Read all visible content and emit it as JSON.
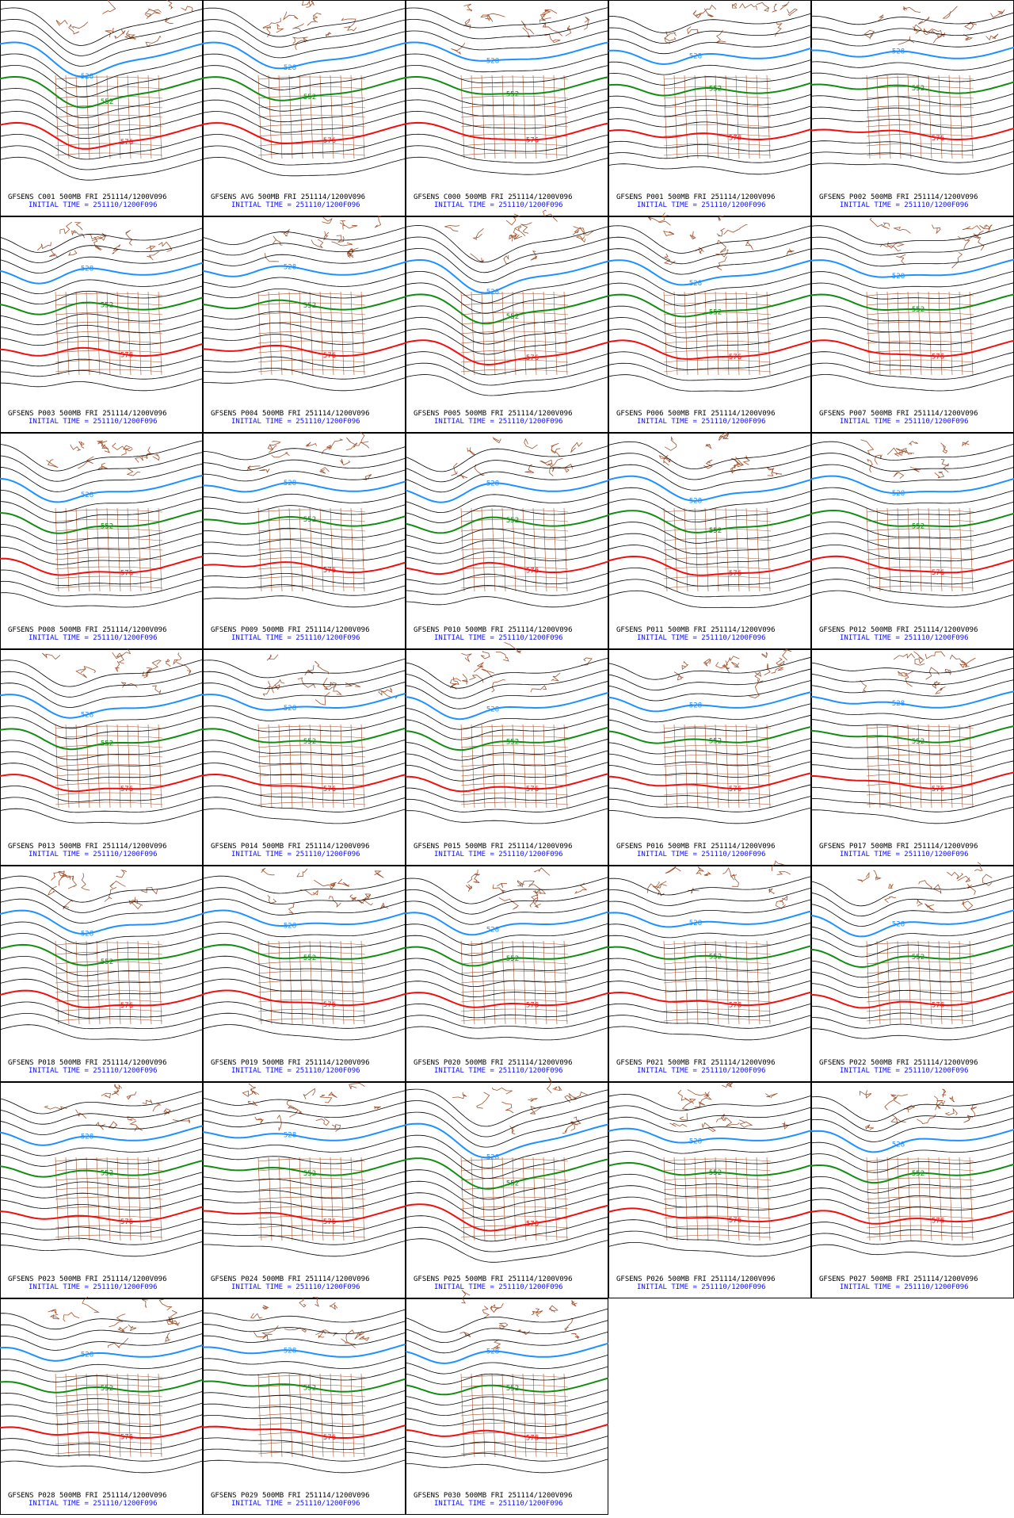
{
  "panels": [
    {
      "line1": "GFSENS C001 500MB FRI 251114/1200V096",
      "line2": "INITIAL TIME = 251110/1200F096"
    },
    {
      "line1": "GFSENS AVG 500MB FRI 251114/1200V096",
      "line2": "INITIAL TIME = 251110/1200F096"
    },
    {
      "line1": "GFSENS C000 500MB FRI 251114/1200V096",
      "line2": "INITIAL TIME = 251110/1200F096"
    },
    {
      "line1": "GFSENS P001 500MB FRI 251114/1200V096",
      "line2": "INITIAL TIME = 251110/1200F096"
    },
    {
      "line1": "GFSENS P002 500MB FRI 251114/1200V096",
      "line2": "INITIAL TIME = 251110/1200F096"
    },
    {
      "line1": "GFSENS P003 500MB FRI 251114/1200V096",
      "line2": "INITIAL TIME = 251110/1200F096"
    },
    {
      "line1": "GFSENS P004 500MB FRI 251114/1200V096",
      "line2": "INITIAL TIME = 251110/1200F096"
    },
    {
      "line1": "GFSENS P005 500MB FRI 251114/1200V096",
      "line2": "INITIAL TIME = 251110/1200F096"
    },
    {
      "line1": "GFSENS P006 500MB FRI 251114/1200V096",
      "line2": "INITIAL TIME = 251110/1200F096"
    },
    {
      "line1": "GFSENS P007 500MB FRI 251114/1200V096",
      "line2": "INITIAL TIME = 251110/1200F096"
    },
    {
      "line1": "GFSENS P008 500MB FRI 251114/1200V096",
      "line2": "INITIAL TIME = 251110/1200F096"
    },
    {
      "line1": "GFSENS P009 500MB FRI 251114/1200V096",
      "line2": "INITIAL TIME = 251110/1200F096"
    },
    {
      "line1": "GFSENS P010 500MB FRI 251114/1200V096",
      "line2": "INITIAL TIME = 251110/1200F096"
    },
    {
      "line1": "GFSENS P011 500MB FRI 251114/1200V096",
      "line2": "INITIAL TIME = 251110/1200F096"
    },
    {
      "line1": "GFSENS P012 500MB FRI 251114/1200V096",
      "line2": "INITIAL TIME = 251110/1200F096"
    },
    {
      "line1": "GFSENS P013 500MB FRI 251114/1200V096",
      "line2": "INITIAL TIME = 251110/1200F096"
    },
    {
      "line1": "GFSENS P014 500MB FRI 251114/1200V096",
      "line2": "INITIAL TIME = 251110/1200F096"
    },
    {
      "line1": "GFSENS P015 500MB FRI 251114/1200V096",
      "line2": "INITIAL TIME = 251110/1200F096"
    },
    {
      "line1": "GFSENS P016 500MB FRI 251114/1200V096",
      "line2": "INITIAL TIME = 251110/1200F096"
    },
    {
      "line1": "GFSENS P017 500MB FRI 251114/1200V096",
      "line2": "INITIAL TIME = 251110/1200F096"
    },
    {
      "line1": "GFSENS P018 500MB FRI 251114/1200V096",
      "line2": "INITIAL TIME = 251110/1200F096"
    },
    {
      "line1": "GFSENS P019 500MB FRI 251114/1200V096",
      "line2": "INITIAL TIME = 251110/1200F096"
    },
    {
      "line1": "GFSENS P020 500MB FRI 251114/1200V096",
      "line2": "INITIAL TIME = 251110/1200F096"
    },
    {
      "line1": "GFSENS P021 500MB FRI 251114/1200V096",
      "line2": "INITIAL TIME = 251110/1200F096"
    },
    {
      "line1": "GFSENS P022 500MB FRI 251114/1200V096",
      "line2": "INITIAL TIME = 251110/1200F096"
    },
    {
      "line1": "GFSENS P023 500MB FRI 251114/1200V096",
      "line2": "INITIAL TIME = 251110/1200F096"
    },
    {
      "line1": "GFSENS P024 500MB FRI 251114/1200V096",
      "line2": "INITIAL TIME = 251110/1200F096"
    },
    {
      "line1": "GFSENS P025 500MB FRI 251114/1200V096",
      "line2": "INITIAL TIME = 251110/1200F096"
    },
    {
      "line1": "GFSENS P026 500MB FRI 251114/1200V096",
      "line2": "INITIAL TIME = 251110/1200F096"
    },
    {
      "line1": "GFSENS P027 500MB FRI 251114/1200V096",
      "line2": "INITIAL TIME = 251110/1200F096"
    },
    {
      "line1": "GFSENS P028 500MB FRI 251114/1200V096",
      "line2": "INITIAL TIME = 251110/1200F096"
    },
    {
      "line1": "GFSENS P029 500MB FRI 251114/1200V096",
      "line2": "INITIAL TIME = 251110/1200F096"
    },
    {
      "line1": "GFSENS P030 500MB FRI 251114/1200V096",
      "line2": "INITIAL TIME = 251110/1200F096"
    }
  ],
  "contour_labels": [
    {
      "text": "528",
      "color": "#1e90ff"
    },
    {
      "text": "552",
      "color": "#128c12"
    },
    {
      "text": "576",
      "color": "#ee1010"
    }
  ]
}
